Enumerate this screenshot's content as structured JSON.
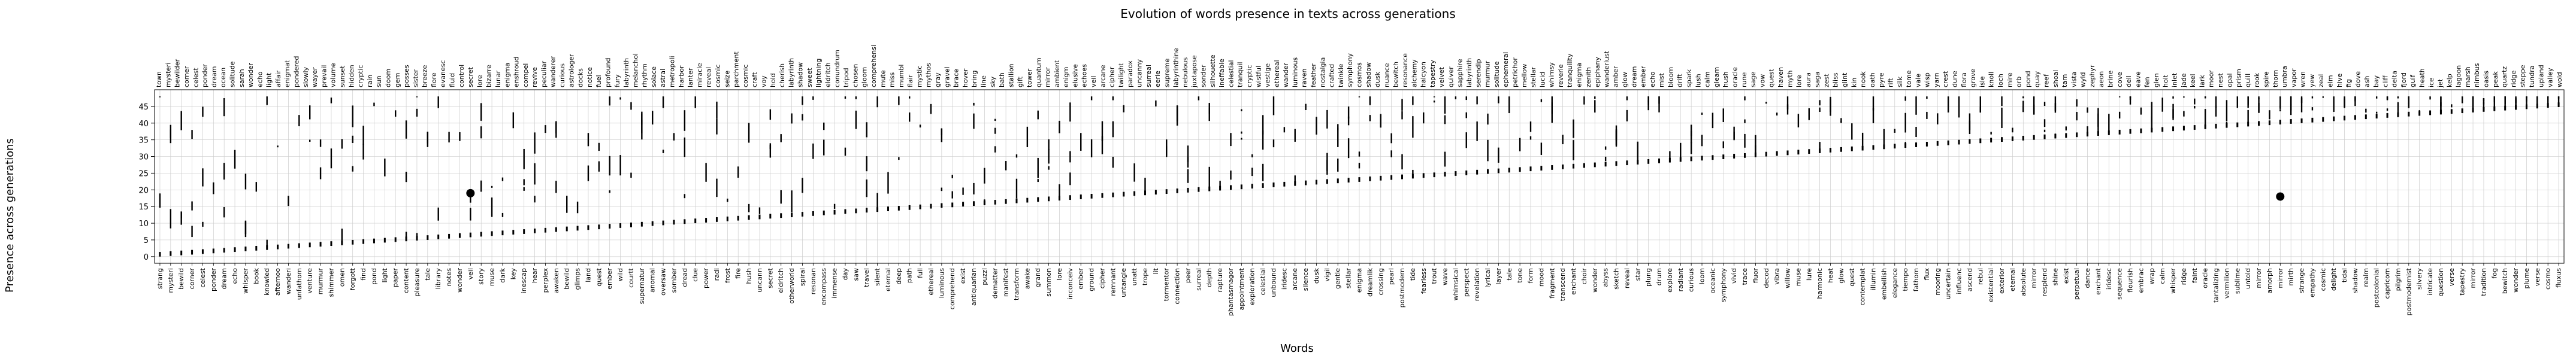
{
  "chart_data": {
    "type": "scatter",
    "title": "Evolution of words presence in texts across generations",
    "xlabel": "Words",
    "ylabel": "Presence across generations",
    "yticks": [
      0,
      5,
      10,
      15,
      20,
      25,
      30,
      35,
      40,
      45
    ],
    "ylim": [
      -2,
      50
    ],
    "grid": true,
    "legend": "none",
    "marker_color": "#000000",
    "grid_color": "#cccccc",
    "words": [
      "strang",
      "mysteri",
      "bewild",
      "corner",
      "celest",
      "ponder",
      "dream",
      "echo",
      "whisper",
      "book",
      "knowled",
      "afternoo",
      "wanderi",
      "unfathom",
      "venture",
      "murmur",
      "shimmer",
      "omen",
      "forgott",
      "find",
      "pond",
      "light",
      "paper",
      "content",
      "pleasure",
      "tale",
      "library",
      "notes",
      "wonder",
      "veil",
      "story",
      "muse",
      "dark",
      "key",
      "inescap",
      "hear",
      "perplex",
      "awaken",
      "bewild",
      "glimps",
      "land",
      "quest",
      "ember",
      "wild",
      "courtt",
      "supernatur",
      "anomal",
      "oversaw",
      "somber",
      "dread",
      "clue",
      "power",
      "radi",
      "frost",
      "fire",
      "hush",
      "uncann",
      "secret",
      "eldritch",
      "otherworld",
      "spiral",
      "resonan",
      "encompass",
      "immense",
      "day",
      "saw",
      "travel",
      "silent",
      "eternal",
      "deep",
      "path",
      "full",
      "ethereal",
      "luminous",
      "comprehend",
      "exist",
      "antiquarian",
      "puzzl",
      "dematter",
      "manifest",
      "transform",
      "awake",
      "grand",
      "summon",
      "lore",
      "inconceiv",
      "ember",
      "ground",
      "cipher",
      "remnant",
      "untangle",
      "unatt",
      "trope",
      "lit",
      "tormentor",
      "connection",
      "peer",
      "surreal",
      "depth",
      "rapture",
      "phantasmagor",
      "appointment",
      "exploration",
      "celestial",
      "unbound",
      "iridesc",
      "arcane",
      "silence",
      "dusk",
      "vigil",
      "gentle",
      "stellar",
      "enigma",
      "dreamlik",
      "crossing",
      "pearl",
      "postmodern",
      "tide",
      "fearless",
      "trout",
      "wave",
      "whimsical",
      "perspect",
      "revelation",
      "lyrical",
      "layer",
      "tale",
      "tone",
      "form",
      "mood",
      "fragment",
      "transcend",
      "enchant",
      "choir",
      "wonder",
      "abyss",
      "sketch",
      "reveal",
      "star",
      "plung",
      "drum",
      "explore",
      "radiant",
      "curious",
      "loom",
      "oceanic",
      "symphony",
      "vivid",
      "trace",
      "fluor",
      "decod",
      "vibra",
      "willow",
      "muse",
      "lure",
      "harmonic",
      "heat",
      "glow",
      "quest",
      "contemplat",
      "illumin",
      "embellish",
      "elegance",
      "tiempo",
      "fathom",
      "flux",
      "mooring",
      "uncertain",
      "influenc",
      "ascend",
      "rebul",
      "existential",
      "exterior",
      "eternal",
      "absolute",
      "mirror",
      "resplend",
      "shine",
      "exist",
      "perpetual",
      "dance",
      "enchant",
      "iridesc",
      "sequence",
      "flourish",
      "embrac",
      "wrap",
      "calm",
      "whisper",
      "ridge",
      "faint",
      "oracle",
      "tantalizing",
      "vermilion",
      "sublime",
      "untold",
      "mirror",
      "amorph",
      "mirror",
      "mirth",
      "strange",
      "empathy",
      "cosmic",
      "delight",
      "tidal",
      "shadow",
      "realm",
      "postcolonial",
      "capricorn",
      "pilgrim",
      "postmodernist",
      "silvery",
      "intricate",
      "question",
      "verse",
      "tapestry",
      "mirror",
      "tradition",
      "fog",
      "bewitch",
      "wonder",
      "plume",
      "verse",
      "cosmo",
      "fluxus"
    ],
    "top_labels": [
      "town",
      "mysteri",
      "bewilder",
      "corner",
      "celest",
      "ponder",
      "dream",
      "ocean",
      "solitude",
      "sarah",
      "wonder",
      "echo",
      "light",
      "affair",
      "enigmat",
      "pondered",
      "slowly",
      "wayer",
      "prevail",
      "volume",
      "sunset",
      "hidden",
      "cryptic",
      "rain",
      "sun",
      "doom",
      "gem",
      "posses",
      "sister",
      "breeze",
      "flore",
      "evanesc",
      "fluid",
      "control",
      "secret",
      "lore",
      "bizarre",
      "lunar",
      "enigma",
      "enshroud",
      "compel",
      "revive",
      "peculiar",
      "wanderer",
      "curious",
      "astrologer",
      "docks",
      "notice",
      "fuel",
      "profound",
      "fury",
      "labyrinth",
      "melanchol",
      "rhythm",
      "solace",
      "astral",
      "metropoli",
      "harbor",
      "lanter",
      "miracle",
      "reveal",
      "cosmic",
      "seize",
      "parchment",
      "cosmic",
      "craft",
      "voy",
      "hold",
      "cherish",
      "labyrinth",
      "shadow",
      "sweet",
      "lightning",
      "eldritch",
      "conundrum",
      "tripod",
      "chosen",
      "gloom",
      "comprehensi",
      "mute",
      "miss",
      "mumbl",
      "flair",
      "mystic",
      "mythos",
      "gray",
      "gravel",
      "brace",
      "hover",
      "bring",
      "line",
      "sky",
      "bath",
      "stallion",
      "gift",
      "tower",
      "quantum",
      "mirror",
      "ambient",
      "enigm",
      "elusive",
      "echoes",
      "veil",
      "arcane",
      "cipher",
      "twilight",
      "paradox",
      "uncanny",
      "surreal",
      "eerie",
      "supreme",
      "labyrinthine",
      "nebulous",
      "juxtapose",
      "sonder",
      "silhouette",
      "ineffable",
      "celestial",
      "tranquil",
      "cryptic",
      "wistful",
      "vestige",
      "ethereal",
      "wander",
      "luminous",
      "raven",
      "feather",
      "nostalgia",
      "crafted",
      "twinkle",
      "symphony",
      "cosmos",
      "shadow",
      "dusk",
      "nuance",
      "bewitch",
      "resonance",
      "alchemy",
      "halcyon",
      "tapestry",
      "velvet",
      "quiver",
      "sapphire",
      "labyrinth",
      "serendip",
      "murmur",
      "solitude",
      "ephemeral",
      "petrichor",
      "mellow",
      "stellar",
      "lucid",
      "whimsy",
      "reverie",
      "tranquility",
      "enigma",
      "zenith",
      "epiphany",
      "wanderlust",
      "amber",
      "glow",
      "dream",
      "ember",
      "echo",
      "mist",
      "bloom",
      "drift",
      "spark",
      "lush",
      "calm",
      "gleam",
      "hush",
      "oracle",
      "rune",
      "sage",
      "vow",
      "quest",
      "haven",
      "myth",
      "lore",
      "aura",
      "saga",
      "zest",
      "bliss",
      "glint",
      "kin",
      "nook",
      "oath",
      "pyre",
      "rift",
      "silk",
      "tome",
      "vale",
      "wisp",
      "yarn",
      "crest",
      "dune",
      "flora",
      "grove",
      "isle",
      "knoll",
      "loch",
      "mire",
      "orb",
      "pond",
      "quay",
      "reef",
      "shoal",
      "tarn",
      "vista",
      "wyld",
      "zephyr",
      "aeon",
      "brine",
      "cove",
      "dell",
      "eave",
      "fen",
      "glen",
      "holt",
      "inlet",
      "jade",
      "keel",
      "lark",
      "moor",
      "nest",
      "opal",
      "prism",
      "quill",
      "rook",
      "spire",
      "thorn",
      "umbra",
      "vapor",
      "wren",
      "yew",
      "zeal",
      "elm",
      "hive",
      "fig",
      "dove",
      "ash",
      "bay",
      "cliff",
      "delta",
      "fjord",
      "gulf",
      "heath",
      "ice",
      "jet",
      "kelp",
      "lagoon",
      "marsh",
      "nimbus",
      "oasis",
      "peak",
      "quartz",
      "ridge",
      "steppe",
      "tundra",
      "upland",
      "valley",
      "wold"
    ],
    "series": [
      {
        "name": "",
        "note": "vertical presence bars per word"
      }
    ],
    "highlights": [
      {
        "word_index": 29,
        "generation": 19
      },
      {
        "word_index": 198,
        "generation": 18
      }
    ]
  }
}
